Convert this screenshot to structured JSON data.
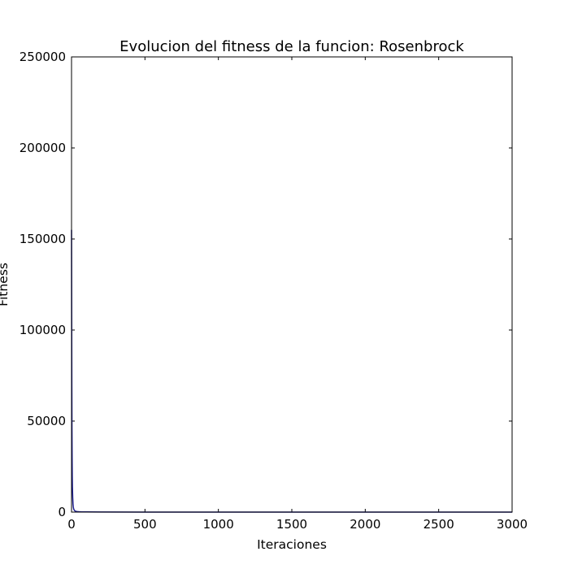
{
  "chart_data": {
    "type": "line",
    "title": "Evolucion del fitness de la funcion: Rosenbrock",
    "xlabel": "Iteraciones",
    "ylabel": "Fitness",
    "xlim": [
      0,
      3000
    ],
    "ylim": [
      0,
      250000
    ],
    "xticks": [
      0,
      500,
      1000,
      1500,
      2000,
      2500,
      3000
    ],
    "yticks": [
      0,
      50000,
      100000,
      150000,
      200000,
      250000
    ],
    "grid": false,
    "series": [
      {
        "color": "#1f1f8f",
        "x": [
          0,
          1,
          2,
          3,
          4,
          5,
          6,
          8,
          10,
          12,
          15,
          20,
          25,
          30,
          40,
          50,
          70,
          100,
          200,
          500,
          1000,
          2000,
          3000
        ],
        "y": [
          155000,
          110000,
          70000,
          45000,
          30000,
          20000,
          14000,
          8000,
          4500,
          2800,
          1600,
          900,
          600,
          420,
          280,
          200,
          130,
          90,
          50,
          25,
          15,
          10,
          8
        ]
      }
    ]
  }
}
